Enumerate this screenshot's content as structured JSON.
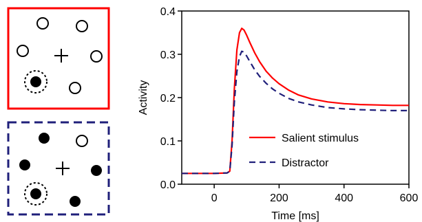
{
  "chart_data": {
    "type": "line",
    "title": "",
    "xlabel": "Time [ms]",
    "ylabel": "Activity",
    "xlim": [
      -100,
      600
    ],
    "ylim": [
      0.0,
      0.4
    ],
    "xticks": [
      "0",
      "200",
      "400",
      "600"
    ],
    "xtick_values": [
      0,
      200,
      400,
      600
    ],
    "yticks": [
      "0.0",
      "0.1",
      "0.2",
      "0.3",
      "0.4"
    ],
    "ytick_values": [
      0.0,
      0.1,
      0.2,
      0.3,
      0.4
    ],
    "grid": false,
    "legend_position": "center-right",
    "series": [
      {
        "name": "Salient stimulus",
        "color": "#ff0000",
        "dash": "solid",
        "x": [
          -100,
          0,
          40,
          48,
          55,
          62,
          70,
          78,
          85,
          92,
          100,
          110,
          125,
          140,
          160,
          180,
          200,
          230,
          260,
          300,
          350,
          400,
          450,
          500,
          550,
          600
        ],
        "y": [
          0.025,
          0.025,
          0.026,
          0.03,
          0.1,
          0.22,
          0.31,
          0.35,
          0.36,
          0.356,
          0.344,
          0.327,
          0.303,
          0.283,
          0.261,
          0.245,
          0.232,
          0.217,
          0.206,
          0.197,
          0.19,
          0.186,
          0.184,
          0.183,
          0.182,
          0.182
        ]
      },
      {
        "name": "Distractor",
        "color": "#1f1f7a",
        "dash": "dashed",
        "x": [
          -100,
          0,
          40,
          48,
          55,
          62,
          70,
          78,
          85,
          92,
          100,
          110,
          125,
          140,
          160,
          180,
          200,
          230,
          260,
          300,
          350,
          400,
          450,
          500,
          550,
          600
        ],
        "y": [
          0.025,
          0.025,
          0.026,
          0.03,
          0.09,
          0.19,
          0.26,
          0.295,
          0.307,
          0.305,
          0.296,
          0.283,
          0.264,
          0.249,
          0.233,
          0.22,
          0.21,
          0.198,
          0.19,
          0.183,
          0.177,
          0.174,
          0.172,
          0.171,
          0.17,
          0.17
        ]
      }
    ]
  },
  "panels": {
    "salient_display": {
      "border_color": "#ff0000",
      "border_style": "solid",
      "items": [
        {
          "shape": "open-circle"
        },
        {
          "shape": "open-circle"
        },
        {
          "shape": "open-circle"
        },
        {
          "shape": "open-circle"
        },
        {
          "shape": "filled-circle",
          "cued": true
        },
        {
          "shape": "open-circle"
        }
      ],
      "fixation": "+"
    },
    "distractor_display": {
      "border_color": "#1f1f7a",
      "border_style": "dashed",
      "items": [
        {
          "shape": "filled-circle"
        },
        {
          "shape": "open-circle"
        },
        {
          "shape": "filled-circle"
        },
        {
          "shape": "filled-circle"
        },
        {
          "shape": "filled-circle",
          "cued": true
        },
        {
          "shape": "filled-circle"
        }
      ],
      "fixation": "+"
    }
  }
}
